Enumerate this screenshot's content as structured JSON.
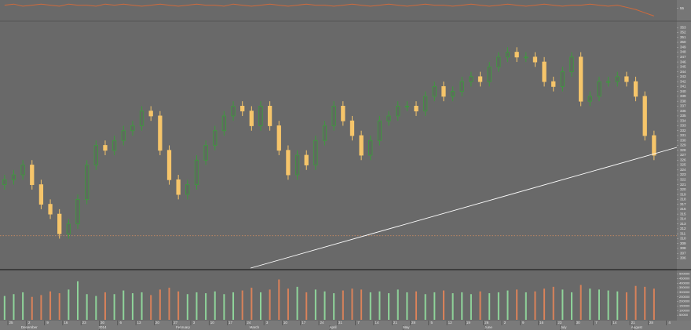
{
  "chart_data": {
    "type": "candlestick",
    "x": [
      0.25,
      0.75,
      1.25,
      1.75,
      2.25,
      2.75,
      3.25,
      3.75,
      4.25,
      4.75,
      5.25,
      5.75,
      6.25,
      6.75,
      7.25,
      7.75,
      8.25,
      8.75,
      9.25,
      9.75,
      10.25,
      10.75,
      11.25,
      11.75,
      12.25,
      12.75,
      13.25,
      13.75,
      14.25,
      14.75,
      15.25,
      15.75,
      16.25,
      16.75,
      17.25,
      17.75,
      18.25,
      18.75,
      19.25,
      19.75,
      20.25,
      20.75,
      21.25,
      21.75,
      22.25,
      22.75,
      23.25,
      23.75,
      24.25,
      24.75,
      25.25,
      25.75,
      26.25,
      26.75,
      27.25,
      27.75,
      28.25,
      28.75,
      29.25,
      29.75,
      30.25,
      30.75,
      31.25,
      31.75,
      32.25,
      32.75,
      33.25,
      33.75,
      34.25,
      34.75,
      35.25,
      35.75
    ],
    "open": [
      321,
      322,
      323,
      325,
      321,
      317,
      315,
      311,
      313,
      318,
      325,
      329,
      328,
      330,
      332,
      333,
      336,
      335,
      328,
      322,
      319,
      321,
      326,
      329,
      332,
      335,
      337,
      336,
      333,
      337,
      333,
      328,
      323,
      327,
      325,
      330,
      333,
      337,
      334,
      331,
      327,
      330,
      334,
      335,
      337,
      337,
      336,
      339,
      341,
      339,
      340,
      342,
      343,
      342,
      345,
      347,
      348,
      347,
      347,
      346,
      342,
      341,
      344,
      347,
      338,
      339,
      342,
      342,
      343,
      342,
      339,
      331
    ],
    "high": [
      323,
      324,
      326,
      326,
      322,
      318,
      316,
      314,
      319,
      326,
      330,
      330,
      331,
      333,
      334,
      337,
      337,
      336,
      329,
      323,
      322,
      327,
      330,
      333,
      336,
      338,
      338,
      337,
      338,
      338,
      334,
      329,
      328,
      328,
      331,
      334,
      338,
      338,
      335,
      332,
      331,
      335,
      336,
      338,
      338,
      338,
      340,
      342,
      342,
      341,
      343,
      344,
      344,
      346,
      348,
      349,
      349,
      348,
      348,
      347,
      343,
      345,
      348,
      348,
      340,
      343,
      343,
      344,
      344,
      343,
      340,
      332
    ],
    "low": [
      320,
      321,
      322,
      320,
      316,
      314,
      310,
      310,
      312,
      317,
      324,
      327,
      327,
      329,
      331,
      332,
      334,
      327,
      321,
      318,
      318,
      320,
      325,
      328,
      331,
      334,
      335,
      332,
      332,
      332,
      327,
      322,
      322,
      324,
      324,
      329,
      332,
      333,
      330,
      326,
      326,
      329,
      333,
      334,
      336,
      335,
      335,
      338,
      338,
      338,
      339,
      341,
      341,
      341,
      344,
      346,
      346,
      346,
      345,
      341,
      340,
      340,
      343,
      337,
      337,
      338,
      341,
      341,
      341,
      338,
      330,
      326
    ],
    "close": [
      322,
      323,
      325,
      321,
      317,
      315,
      311,
      313,
      318,
      325,
      329,
      328,
      330,
      332,
      333,
      336,
      335,
      328,
      322,
      319,
      321,
      326,
      329,
      332,
      335,
      337,
      336,
      333,
      337,
      333,
      328,
      323,
      327,
      325,
      330,
      333,
      337,
      334,
      331,
      327,
      330,
      334,
      335,
      337,
      337,
      336,
      339,
      341,
      339,
      340,
      342,
      343,
      342,
      345,
      347,
      348,
      347,
      347,
      346,
      342,
      341,
      344,
      347,
      338,
      339,
      342,
      342,
      343,
      342,
      339,
      331,
      327
    ],
    "up_color": "#3c9c3c",
    "down_color": "#f6c56a",
    "xlim": [
      0,
      37
    ],
    "ylim": [
      304,
      354
    ],
    "yticks": [
      306,
      307,
      308,
      309,
      310,
      311,
      312,
      313,
      314,
      315,
      316,
      317,
      318,
      319,
      320,
      321,
      322,
      323,
      324,
      325,
      326,
      327,
      328,
      329,
      330,
      331,
      332,
      333,
      334,
      335,
      336,
      337,
      338,
      339,
      340,
      341,
      342,
      343,
      344,
      345,
      346,
      347,
      348,
      349,
      350,
      351,
      352,
      353
    ],
    "xticks": [
      {
        "value": 0.6,
        "label": "25"
      },
      {
        "value": 1.6,
        "label": "2"
      },
      {
        "value": 2.6,
        "label": "9"
      },
      {
        "value": 3.6,
        "label": "16"
      },
      {
        "value": 4.6,
        "label": "23"
      },
      {
        "value": 5.6,
        "label": "30"
      },
      {
        "value": 6.6,
        "label": "6"
      },
      {
        "value": 7.6,
        "label": "13"
      },
      {
        "value": 8.6,
        "label": "20"
      },
      {
        "value": 9.6,
        "label": "27"
      },
      {
        "value": 10.6,
        "label": "3"
      },
      {
        "value": 11.6,
        "label": "10"
      },
      {
        "value": 12.6,
        "label": "17"
      },
      {
        "value": 13.6,
        "label": "24"
      },
      {
        "value": 14.6,
        "label": "3"
      },
      {
        "value": 15.6,
        "label": "10"
      },
      {
        "value": 16.6,
        "label": "17"
      },
      {
        "value": 17.6,
        "label": "24"
      },
      {
        "value": 18.6,
        "label": "31"
      },
      {
        "value": 19.6,
        "label": "7"
      },
      {
        "value": 20.6,
        "label": "14"
      },
      {
        "value": 21.6,
        "label": "21"
      },
      {
        "value": 22.6,
        "label": "28"
      },
      {
        "value": 23.6,
        "label": "5"
      },
      {
        "value": 24.6,
        "label": "12"
      },
      {
        "value": 25.6,
        "label": "19"
      },
      {
        "value": 26.6,
        "label": "26"
      },
      {
        "value": 27.6,
        "label": "2"
      },
      {
        "value": 28.6,
        "label": "9"
      },
      {
        "value": 29.6,
        "label": "16"
      },
      {
        "value": 30.6,
        "label": "23"
      },
      {
        "value": 31.6,
        "label": "30"
      },
      {
        "value": 32.6,
        "label": "7"
      },
      {
        "value": 33.6,
        "label": "14"
      },
      {
        "value": 34.6,
        "label": "21"
      },
      {
        "value": 35.6,
        "label": "28"
      },
      {
        "value": 36.6,
        "label": "4"
      }
    ],
    "month_ticks": [
      {
        "value": 1.6,
        "label": "December"
      },
      {
        "value": 5.6,
        "label": "2014"
      },
      {
        "value": 10.0,
        "label": "February"
      },
      {
        "value": 13.9,
        "label": "March"
      },
      {
        "value": 18.2,
        "label": "April"
      },
      {
        "value": 22.2,
        "label": "May"
      },
      {
        "value": 26.7,
        "label": "June"
      },
      {
        "value": 30.8,
        "label": "July"
      },
      {
        "value": 34.8,
        "label": "August"
      }
    ],
    "trendline": {
      "x": [
        13.7,
        37
      ],
      "y": [
        304,
        328.6
      ],
      "color": "#ffffff"
    },
    "reference_line": {
      "value": 310.6,
      "color": "#c98a62"
    },
    "volume": {
      "values": [
        260000,
        280000,
        300000,
        250000,
        270000,
        310000,
        290000,
        330000,
        420000,
        280000,
        260000,
        300000,
        280000,
        320000,
        290000,
        300000,
        270000,
        330000,
        350000,
        310000,
        280000,
        300000,
        290000,
        310000,
        280000,
        300000,
        320000,
        350000,
        300000,
        330000,
        440000,
        340000,
        360000,
        300000,
        330000,
        310000,
        290000,
        320000,
        340000,
        330000,
        300000,
        310000,
        290000,
        330000,
        300000,
        310000,
        280000,
        300000,
        320000,
        290000,
        300000,
        280000,
        310000,
        290000,
        300000,
        320000,
        330000,
        300000,
        310000,
        340000,
        360000,
        330000,
        300000,
        380000,
        340000,
        330000,
        320000,
        310000,
        300000,
        370000,
        360000,
        340000
      ],
      "ylim": [
        0,
        530000
      ],
      "yticks": [
        50000,
        100000,
        150000,
        200000,
        250000,
        300000,
        350000,
        400000,
        450000,
        500000
      ],
      "up_color": "#8fd49a",
      "down_color": "#d9825a"
    },
    "indicator": {
      "values": [
        58,
        59,
        57,
        58,
        59,
        58,
        57,
        59,
        58,
        58,
        57,
        59,
        58,
        59,
        58,
        57,
        58,
        59,
        58,
        57,
        58,
        59,
        58,
        58,
        57,
        59,
        58,
        57,
        58,
        59,
        58,
        57,
        58,
        59,
        58,
        58,
        57,
        58,
        59,
        58,
        57,
        58,
        59,
        58,
        57,
        58,
        59,
        58,
        58,
        57,
        58,
        59,
        58,
        57,
        58,
        59,
        58,
        57,
        58,
        59,
        58,
        57,
        58,
        58,
        59,
        58,
        57,
        58,
        56,
        54,
        51,
        48
      ],
      "ylim": [
        44,
        62
      ],
      "yticks": [
        55
      ],
      "color": "#cf6a3c"
    }
  }
}
